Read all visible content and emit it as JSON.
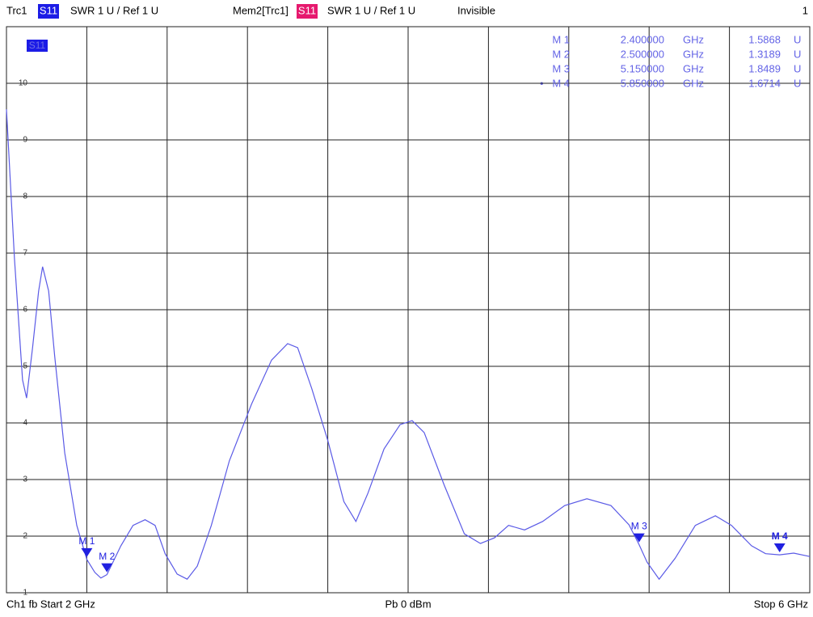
{
  "chart_data": {
    "type": "line",
    "header": [
      "Trc1",
      "S11",
      "SWR  1 U /  Ref 1 U",
      "Mem2[Trc1]",
      "S11",
      "SWR  1 U /  Ref 1 U",
      "Invisible",
      "1"
    ],
    "footer": [
      "Ch1  fb  Start  2 GHz",
      "Pb   0 dBm",
      "Stop  6 GHz"
    ],
    "xlim": [
      2,
      6
    ],
    "xticks": [
      2,
      2.4,
      2.8,
      3.2,
      3.6,
      4,
      4.4,
      4.8,
      5.2,
      5.6,
      6
    ],
    "ylim": [
      1,
      11
    ],
    "yticks": [
      1,
      2,
      3,
      4,
      5,
      6,
      7,
      8,
      9,
      10
    ],
    "grid": true,
    "x": [
      2.0,
      2.04,
      2.08,
      2.1,
      2.13,
      2.16,
      2.18,
      2.21,
      2.24,
      2.29,
      2.35,
      2.4,
      2.44,
      2.47,
      2.5,
      2.57,
      2.63,
      2.69,
      2.74,
      2.79,
      2.85,
      2.9,
      2.95,
      3.02,
      3.11,
      3.22,
      3.32,
      3.4,
      3.45,
      3.52,
      3.6,
      3.68,
      3.74,
      3.8,
      3.88,
      3.96,
      4.02,
      4.08,
      4.18,
      4.28,
      4.36,
      4.43,
      4.5,
      4.58,
      4.67,
      4.78,
      4.89,
      5.01,
      5.1,
      5.15,
      5.19,
      5.25,
      5.33,
      5.43,
      5.53,
      5.61,
      5.71,
      5.78,
      5.85,
      5.92,
      6.0
    ],
    "series": [
      {
        "color": "#5a5ae6",
        "values": [
          9.54,
          6.9,
          4.76,
          4.44,
          5.33,
          6.33,
          6.76,
          6.33,
          5.19,
          3.47,
          2.19,
          1.59,
          1.36,
          1.26,
          1.32,
          1.83,
          2.19,
          2.29,
          2.19,
          1.69,
          1.33,
          1.24,
          1.47,
          2.19,
          3.33,
          4.33,
          5.11,
          5.4,
          5.33,
          4.61,
          3.69,
          2.61,
          2.26,
          2.76,
          3.54,
          3.97,
          4.04,
          3.83,
          2.9,
          2.04,
          1.87,
          1.97,
          2.19,
          2.11,
          2.26,
          2.54,
          2.66,
          2.54,
          2.2,
          1.85,
          1.54,
          1.24,
          1.61,
          2.19,
          2.36,
          2.19,
          1.83,
          1.69,
          1.67,
          1.7,
          1.64
        ]
      }
    ],
    "markers": {
      "names": [
        "M 1",
        "M 2",
        "M 3",
        "M 4"
      ],
      "x": [
        2.4,
        2.5,
        5.15,
        5.85
      ],
      "x_labels": [
        "2.400000",
        "2.500000",
        "5.150000",
        "5.850000"
      ],
      "x_unit": "GHz",
      "values": [
        1.5868,
        1.3189,
        1.8489,
        1.6714
      ],
      "value_unit": "U",
      "color": "#2020e0"
    }
  }
}
